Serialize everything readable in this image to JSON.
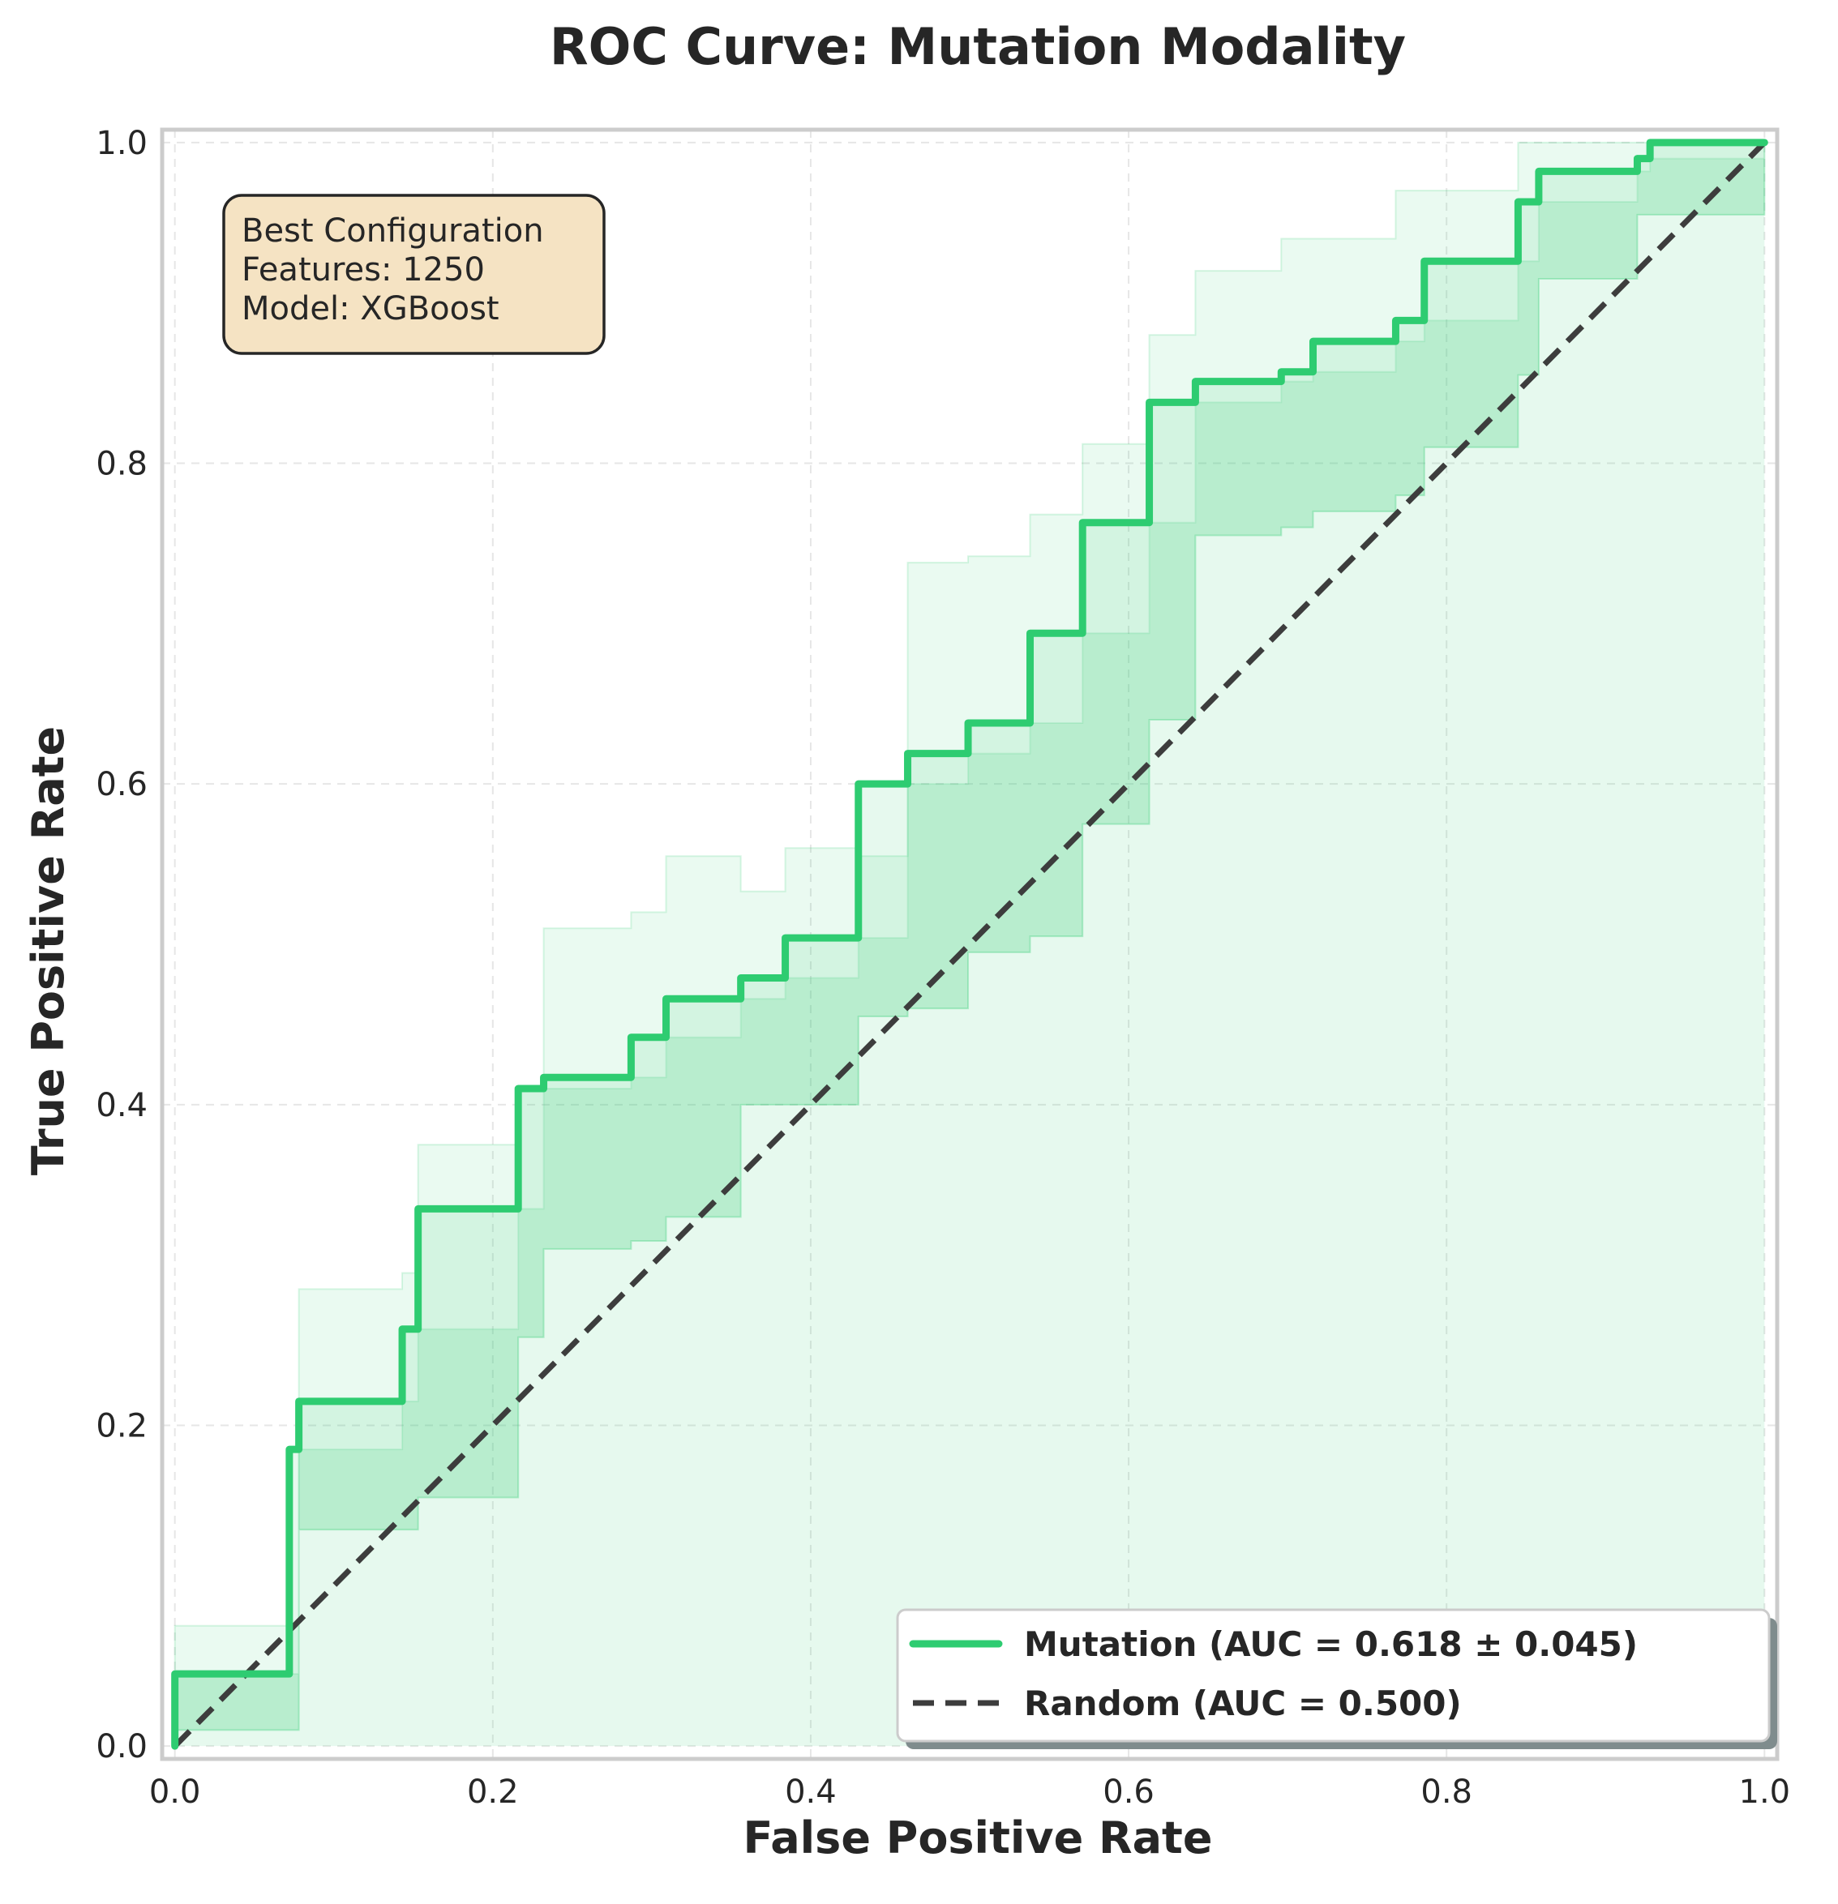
{
  "chart_data": {
    "type": "line",
    "title": "ROC Curve: Mutation Modality",
    "xlabel": "False Positive Rate",
    "ylabel": "True Positive Rate",
    "xlim": [
      0.0,
      1.0
    ],
    "ylim": [
      0.0,
      1.0
    ],
    "xticks": [
      "0.0",
      "0.2",
      "0.4",
      "0.6",
      "0.8",
      "1.0"
    ],
    "yticks": [
      "0.0",
      "0.2",
      "0.4",
      "0.6",
      "0.8",
      "1.0"
    ],
    "grid": true,
    "legend_position": "lower-right",
    "colors": {
      "mutation": "#2ecc71",
      "random": "#3d3d3d",
      "band": "#2ecc71",
      "annotation_bg": "#f5e3c3"
    },
    "annotation": {
      "lines": [
        "Best Configuration",
        "Features: 1250",
        "Model: XGBoost"
      ]
    },
    "series": [
      {
        "name": "Mutation (AUC = 0.618 ± 0.045)",
        "style": "solid",
        "x": [
          0.0,
          0.0,
          0.072,
          0.072,
          0.078,
          0.078,
          0.143,
          0.143,
          0.153,
          0.153,
          0.216,
          0.216,
          0.232,
          0.232,
          0.287,
          0.287,
          0.309,
          0.309,
          0.356,
          0.356,
          0.384,
          0.384,
          0.43,
          0.43,
          0.461,
          0.461,
          0.499,
          0.499,
          0.538,
          0.538,
          0.571,
          0.571,
          0.613,
          0.613,
          0.642,
          0.642,
          0.696,
          0.696,
          0.716,
          0.716,
          0.768,
          0.768,
          0.786,
          0.786,
          0.845,
          0.845,
          0.858,
          0.858,
          0.92,
          0.92,
          0.928,
          0.928,
          1.0
        ],
        "y": [
          0.0,
          0.045,
          0.045,
          0.185,
          0.185,
          0.215,
          0.215,
          0.26,
          0.26,
          0.335,
          0.335,
          0.41,
          0.41,
          0.417,
          0.417,
          0.442,
          0.442,
          0.466,
          0.466,
          0.479,
          0.479,
          0.504,
          0.504,
          0.6,
          0.6,
          0.619,
          0.619,
          0.638,
          0.638,
          0.694,
          0.694,
          0.763,
          0.763,
          0.838,
          0.838,
          0.851,
          0.851,
          0.857,
          0.857,
          0.876,
          0.876,
          0.889,
          0.889,
          0.926,
          0.926,
          0.963,
          0.963,
          0.982,
          0.982,
          0.99,
          0.99,
          1.0,
          1.0
        ]
      },
      {
        "name": "Random (AUC = 0.500)",
        "style": "dashed",
        "x": [
          0.0,
          1.0
        ],
        "y": [
          0.0,
          1.0
        ]
      }
    ],
    "band_outer": {
      "x": [
        0.0,
        0.072,
        0.078,
        0.143,
        0.153,
        0.216,
        0.232,
        0.287,
        0.309,
        0.356,
        0.384,
        0.43,
        0.461,
        0.499,
        0.538,
        0.571,
        0.613,
        0.642,
        0.696,
        0.716,
        0.768,
        0.786,
        0.845,
        0.858,
        0.92,
        0.928,
        1.0
      ],
      "lower": [
        0.01,
        0.01,
        0.135,
        0.135,
        0.155,
        0.255,
        0.31,
        0.315,
        0.33,
        0.4,
        0.4,
        0.455,
        0.46,
        0.495,
        0.505,
        0.575,
        0.64,
        0.755,
        0.76,
        0.77,
        0.78,
        0.81,
        0.855,
        0.915,
        0.955,
        0.955,
        1.0
      ],
      "upper": [
        0.075,
        0.075,
        0.285,
        0.295,
        0.375,
        0.41,
        0.51,
        0.52,
        0.555,
        0.533,
        0.56,
        0.555,
        0.738,
        0.742,
        0.768,
        0.812,
        0.88,
        0.92,
        0.94,
        0.94,
        0.97,
        0.97,
        1.0,
        1.0,
        1.0,
        1.0,
        1.0
      ]
    },
    "band_inner": {
      "x": [
        0.0,
        0.072,
        0.078,
        0.143,
        0.153,
        0.216,
        0.232,
        0.287,
        0.309,
        0.356,
        0.384,
        0.43,
        0.461,
        0.499,
        0.538,
        0.571,
        0.613,
        0.642,
        0.696,
        0.716,
        0.768,
        0.786,
        0.845,
        0.858,
        0.92,
        0.928,
        1.0
      ],
      "lower": [
        0.01,
        0.01,
        0.135,
        0.135,
        0.155,
        0.255,
        0.31,
        0.315,
        0.33,
        0.4,
        0.4,
        0.455,
        0.46,
        0.495,
        0.505,
        0.575,
        0.64,
        0.755,
        0.76,
        0.77,
        0.78,
        0.81,
        0.855,
        0.915,
        0.955,
        0.955,
        1.0
      ],
      "upper": [
        0.045,
        0.045,
        0.185,
        0.215,
        0.26,
        0.335,
        0.41,
        0.417,
        0.442,
        0.466,
        0.479,
        0.504,
        0.6,
        0.619,
        0.638,
        0.694,
        0.763,
        0.838,
        0.851,
        0.857,
        0.876,
        0.889,
        0.926,
        0.963,
        0.982,
        0.99,
        1.0
      ]
    }
  }
}
